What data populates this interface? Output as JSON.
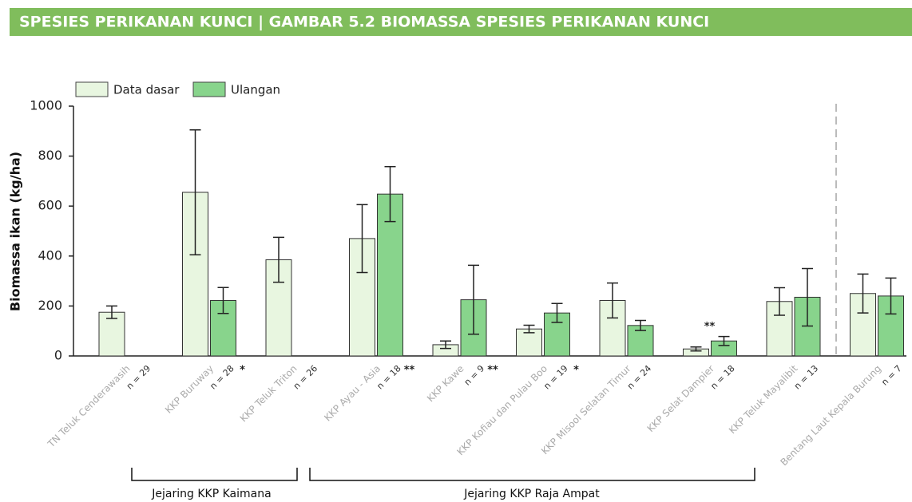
{
  "chart_data": {
    "type": "bar",
    "header": "SPESIES PERIKANAN KUNCI  |  GAMBAR 5.2 BIOMASSA SPESIES PERIKANAN KUNCI",
    "ylabel": "Biomassa ikan  (kg/ha)",
    "categories": [
      "TN Teluk Cenderawasih",
      "KKP Buruway",
      "KKP Teluk Triton",
      "KKP Ayau - Asia",
      "KKP Kawe",
      "KKP Kofiau dan Pulau Boo",
      "KKP Misool Selatan Timur",
      "KKP Selat Dampier",
      "KKP Teluk Mayalibit",
      "Bentang Laut Kepala Burung"
    ],
    "sample_sizes": [
      "n = 29",
      "n = 28",
      "n = 26",
      "n = 18",
      "n = 9",
      "n = 19",
      "n = 24",
      "n = 18",
      "n = 13",
      "n = 7"
    ],
    "stars": [
      null,
      "*",
      null,
      "**",
      "**",
      "*",
      null,
      null,
      null,
      null
    ],
    "annotations": [
      {
        "text": "**",
        "category": "KKP Selat Dampier"
      }
    ],
    "series": [
      {
        "name": "Data dasar",
        "color": "#e8f6e0",
        "values": [
          175,
          655,
          385,
          470,
          45,
          108,
          222,
          28,
          218,
          250
        ],
        "errors": [
          25,
          250,
          90,
          136,
          15,
          15,
          70,
          8,
          55,
          78
        ]
      },
      {
        "name": "Ulangan",
        "color": "#88d48c",
        "values": [
          null,
          222,
          null,
          648,
          225,
          172,
          122,
          60,
          235,
          240
        ],
        "errors": [
          null,
          52,
          null,
          110,
          138,
          38,
          20,
          18,
          115,
          72
        ]
      }
    ],
    "groups": [
      "Jejaring KKP Kaimana",
      "Jejaring KKP Raja Ampat"
    ],
    "ylim": [
      0,
      1000
    ],
    "yticks": [
      0,
      200,
      400,
      600,
      800,
      1000
    ],
    "legend": "top-left"
  }
}
